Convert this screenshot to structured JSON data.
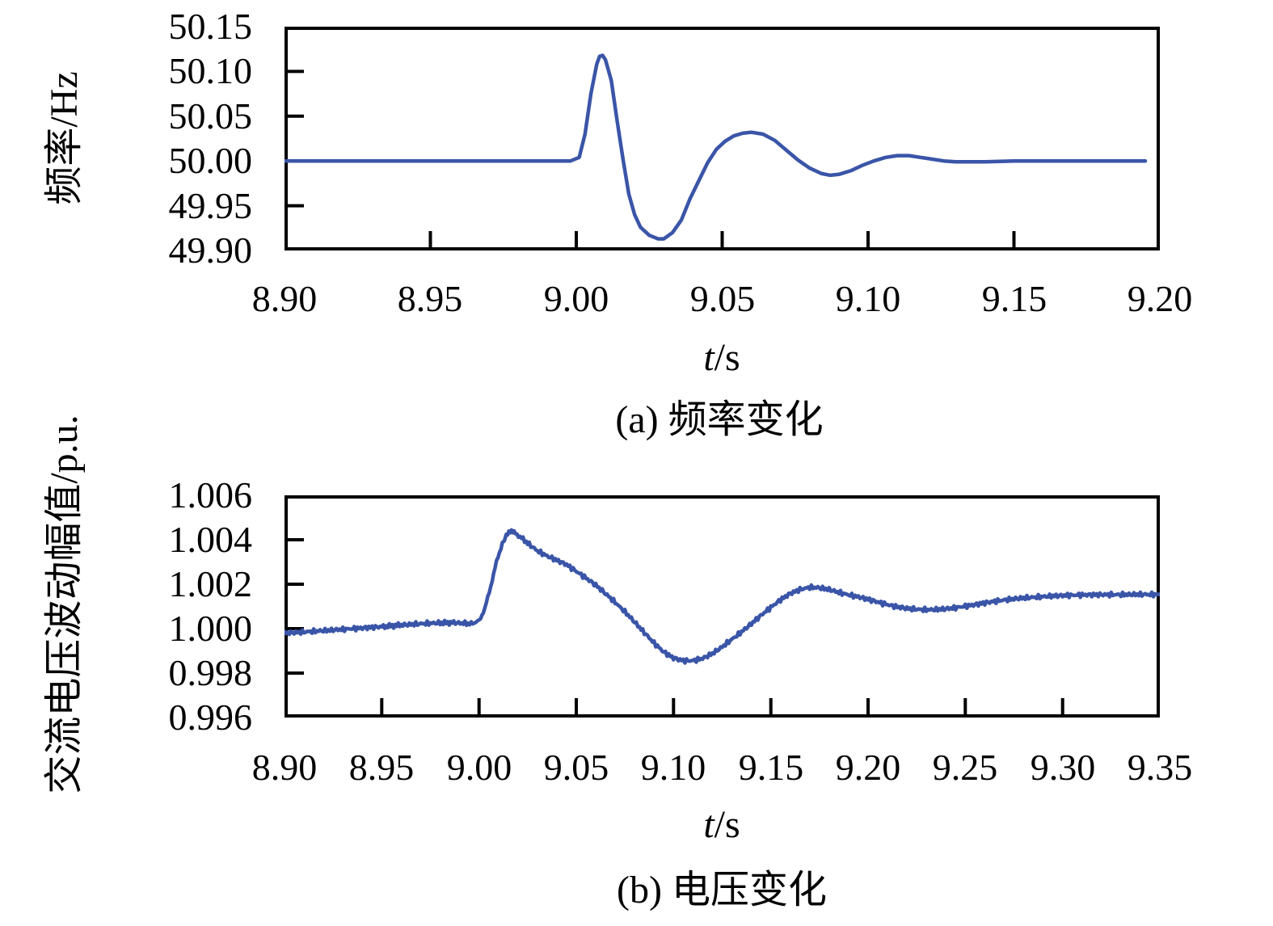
{
  "figure": {
    "background": "#ffffff",
    "frame_color": "#000000",
    "line_color": "#3a55a8"
  },
  "chart_data": [
    {
      "type": "line",
      "caption": "(a) 频率变化",
      "x_label_var": "t",
      "x_label_rest": "/s",
      "y_label": "频率/Hz",
      "xlim": [
        8.9,
        9.2
      ],
      "ylim": [
        49.9,
        50.15
      ],
      "grid": false,
      "legend": "none",
      "x_ticks": [
        8.9,
        8.95,
        9.0,
        9.05,
        9.1,
        9.15,
        9.2
      ],
      "x_tick_labels": [
        "8.90",
        "8.95",
        "9.00",
        "9.05",
        "9.10",
        "9.15",
        "9.20"
      ],
      "y_ticks": [
        49.9,
        49.95,
        50.0,
        50.05,
        50.1,
        50.15
      ],
      "y_tick_labels": [
        "49.90",
        "49.95",
        "50.00",
        "50.05",
        "50.10",
        "50.15"
      ],
      "series": [
        {
          "name": "频率",
          "color": "#3a55a8",
          "noise": 0,
          "points": [
            [
              8.9,
              50.0
            ],
            [
              8.92,
              50.0
            ],
            [
              8.94,
              50.0
            ],
            [
              8.96,
              50.0
            ],
            [
              8.98,
              50.0
            ],
            [
              8.998,
              50.0
            ],
            [
              9.001,
              50.004
            ],
            [
              9.003,
              50.03
            ],
            [
              9.005,
              50.075
            ],
            [
              9.007,
              50.108
            ],
            [
              9.008,
              50.117
            ],
            [
              9.009,
              50.118
            ],
            [
              9.01,
              50.113
            ],
            [
              9.012,
              50.09
            ],
            [
              9.014,
              50.045
            ],
            [
              9.016,
              50.002
            ],
            [
              9.018,
              49.963
            ],
            [
              9.02,
              49.94
            ],
            [
              9.022,
              49.926
            ],
            [
              9.025,
              49.917
            ],
            [
              9.028,
              49.913
            ],
            [
              9.03,
              49.913
            ],
            [
              9.033,
              49.92
            ],
            [
              9.036,
              49.934
            ],
            [
              9.039,
              49.958
            ],
            [
              9.042,
              49.978
            ],
            [
              9.045,
              49.998
            ],
            [
              9.048,
              50.013
            ],
            [
              9.051,
              50.022
            ],
            [
              9.054,
              50.028
            ],
            [
              9.057,
              50.031
            ],
            [
              9.06,
              50.032
            ],
            [
              9.064,
              50.03
            ],
            [
              9.068,
              50.023
            ],
            [
              9.072,
              50.012
            ],
            [
              9.076,
              50.001
            ],
            [
              9.08,
              49.992
            ],
            [
              9.084,
              49.986
            ],
            [
              9.087,
              49.984
            ],
            [
              9.09,
              49.985
            ],
            [
              9.094,
              49.989
            ],
            [
              9.098,
              49.995
            ],
            [
              9.102,
              50.0
            ],
            [
              9.106,
              50.004
            ],
            [
              9.11,
              50.006
            ],
            [
              9.114,
              50.006
            ],
            [
              9.118,
              50.004
            ],
            [
              9.122,
              50.002
            ],
            [
              9.126,
              50.0
            ],
            [
              9.13,
              49.999
            ],
            [
              9.135,
              49.999
            ],
            [
              9.14,
              49.999
            ],
            [
              9.15,
              50.0
            ],
            [
              9.16,
              50.0
            ],
            [
              9.17,
              50.0
            ],
            [
              9.18,
              50.0
            ],
            [
              9.195,
              50.0
            ]
          ]
        }
      ]
    },
    {
      "type": "line",
      "caption": "(b) 电压变化",
      "x_label_var": "t",
      "x_label_rest": "/s",
      "y_label": "交流电压波动幅值/p.u.",
      "xlim": [
        8.9,
        9.35
      ],
      "ylim": [
        0.996,
        1.006
      ],
      "grid": false,
      "legend": "none",
      "x_ticks": [
        8.9,
        8.95,
        9.0,
        9.05,
        9.1,
        9.15,
        9.2,
        9.25,
        9.3,
        9.35
      ],
      "x_tick_labels": [
        "8.90",
        "8.95",
        "9.00",
        "9.05",
        "9.10",
        "9.15",
        "9.20",
        "9.25",
        "9.30",
        "9.35"
      ],
      "y_ticks": [
        0.996,
        0.998,
        1.0,
        1.002,
        1.004,
        1.006
      ],
      "y_tick_labels": [
        "0.996",
        "0.998",
        "1.000",
        "1.002",
        "1.004",
        "1.006"
      ],
      "series": [
        {
          "name": "交流电压波动幅值",
          "color": "#3a55a8",
          "noise": 7e-05,
          "points": [
            [
              8.9,
              0.9998
            ],
            [
              8.91,
              0.99985
            ],
            [
              8.92,
              0.99991
            ],
            [
              8.93,
              0.99997
            ],
            [
              8.94,
              1.00003
            ],
            [
              8.95,
              1.00009
            ],
            [
              8.96,
              1.00016
            ],
            [
              8.97,
              1.00022
            ],
            [
              8.98,
              1.00026
            ],
            [
              8.987,
              1.00027
            ],
            [
              8.992,
              1.00024
            ],
            [
              8.996,
              1.00022
            ],
            [
              9.0,
              1.00035
            ],
            [
              9.003,
              1.0009
            ],
            [
              9.006,
              1.0019
            ],
            [
              9.009,
              1.003
            ],
            [
              9.012,
              1.00385
            ],
            [
              9.014,
              1.0042
            ],
            [
              9.016,
              1.00435
            ],
            [
              9.018,
              1.00432
            ],
            [
              9.021,
              1.00415
            ],
            [
              9.025,
              1.00385
            ],
            [
              9.03,
              1.0035
            ],
            [
              9.035,
              1.00327
            ],
            [
              9.04,
              1.00308
            ],
            [
              9.045,
              1.00288
            ],
            [
              9.05,
              1.00258
            ],
            [
              9.055,
              1.00228
            ],
            [
              9.06,
              1.00196
            ],
            [
              9.065,
              1.00158
            ],
            [
              9.07,
              1.00118
            ],
            [
              9.075,
              1.00076
            ],
            [
              9.08,
              1.0003
            ],
            [
              9.085,
              0.99982
            ],
            [
              9.09,
              0.99935
            ],
            [
              9.095,
              0.99895
            ],
            [
              9.1,
              0.99868
            ],
            [
              9.105,
              0.99856
            ],
            [
              9.11,
              0.99856
            ],
            [
              9.115,
              0.99866
            ],
            [
              9.12,
              0.99888
            ],
            [
              9.125,
              0.99918
            ],
            [
              9.13,
              0.99952
            ],
            [
              9.135,
              0.99986
            ],
            [
              9.14,
              1.00022
            ],
            [
              9.145,
              1.0006
            ],
            [
              9.15,
              1.00096
            ],
            [
              9.155,
              1.0013
            ],
            [
              9.16,
              1.00158
            ],
            [
              9.165,
              1.00176
            ],
            [
              9.17,
              1.00186
            ],
            [
              9.175,
              1.00184
            ],
            [
              9.18,
              1.00176
            ],
            [
              9.185,
              1.00163
            ],
            [
              9.19,
              1.00152
            ],
            [
              9.195,
              1.00143
            ],
            [
              9.2,
              1.00132
            ],
            [
              9.205,
              1.0012
            ],
            [
              9.21,
              1.00108
            ],
            [
              9.215,
              1.00098
            ],
            [
              9.22,
              1.00091
            ],
            [
              9.225,
              1.00087
            ],
            [
              9.23,
              1.00085
            ],
            [
              9.235,
              1.00086
            ],
            [
              9.24,
              1.00089
            ],
            [
              9.245,
              1.00094
            ],
            [
              9.25,
              1.00101
            ],
            [
              9.255,
              1.00108
            ],
            [
              9.26,
              1.00116
            ],
            [
              9.265,
              1.00123
            ],
            [
              9.27,
              1.00129
            ],
            [
              9.275,
              1.00134
            ],
            [
              9.28,
              1.00138
            ],
            [
              9.285,
              1.00141
            ],
            [
              9.29,
              1.00144
            ],
            [
              9.295,
              1.00147
            ],
            [
              9.3,
              1.00149
            ],
            [
              9.31,
              1.00152
            ],
            [
              9.32,
              1.00153
            ],
            [
              9.33,
              1.00153
            ],
            [
              9.34,
              1.00154
            ],
            [
              9.35,
              1.00153
            ]
          ]
        }
      ]
    }
  ]
}
